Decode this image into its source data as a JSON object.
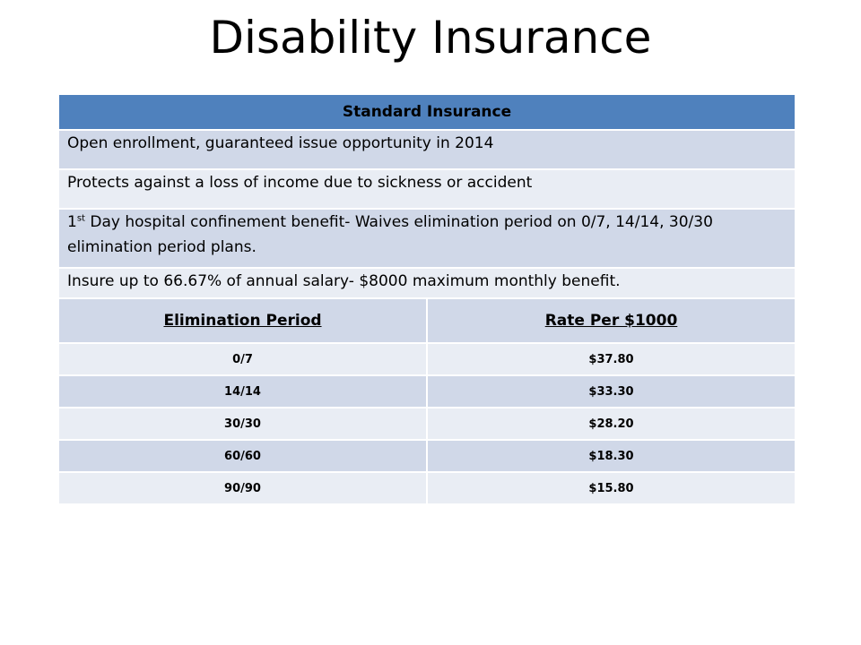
{
  "slide": {
    "title": "Disability Insurance"
  },
  "table": {
    "header": "Standard Insurance",
    "rows": {
      "r1": "Open enrollment, guaranteed issue opportunity in 2014",
      "r2": "Protects against a loss of income due to sickness or accident",
      "r3_num": "1",
      "r3_sup": "st",
      "r3_text": " Day hospital confinement benefit- Waives elimination period on 0/7, 14/14, 30/30 elimination period plans.",
      "r4": "Insure up to 66.67% of annual salary- $8000 maximum monthly benefit."
    },
    "columns": [
      "Elimination Period",
      "Rate Per $1000"
    ],
    "rates": [
      {
        "period": "0/7",
        "rate": "$37.80"
      },
      {
        "period": "14/14",
        "rate": "$33.30"
      },
      {
        "period": "30/30",
        "rate": "$28.20"
      },
      {
        "period": "60/60",
        "rate": "$18.30"
      },
      {
        "period": "90/90",
        "rate": "$15.80"
      }
    ]
  },
  "colors": {
    "header_blue": "#4f81bd",
    "row_dark": "#d0d8e8",
    "row_light": "#e9edf4"
  }
}
